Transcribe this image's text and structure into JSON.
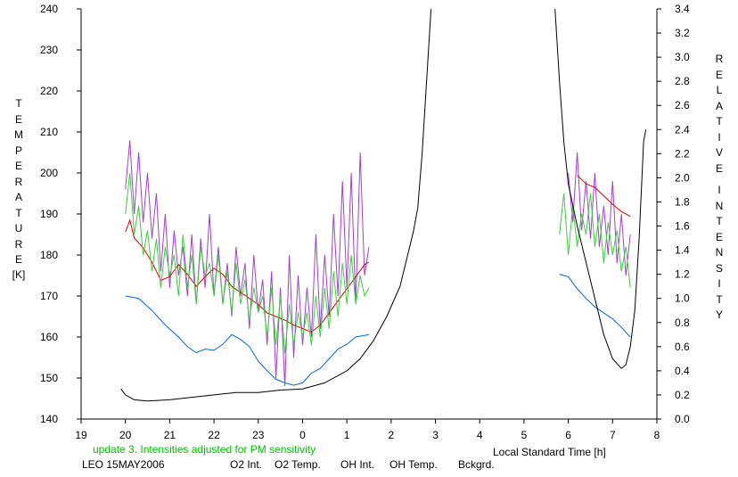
{
  "chart_data": {
    "type": "line",
    "left_axis": {
      "label": "TEMPERATURE [K]",
      "label_letters": "TEMPERATURE",
      "unit": "[K]",
      "ylim": [
        140,
        240
      ],
      "ticks": [
        140,
        150,
        160,
        170,
        180,
        190,
        200,
        210,
        220,
        230,
        240
      ]
    },
    "right_axis": {
      "label": "RELATIVE INTENSITY",
      "word1": "RELATIVE",
      "word2": "INTENSITY",
      "ylim": [
        0.0,
        3.4
      ],
      "ticks": [
        "0.0",
        "0.2",
        "0.4",
        "0.6",
        "0.8",
        "1.0",
        "1.2",
        "1.4",
        "1.6",
        "1.8",
        "2.0",
        "2.2",
        "2.4",
        "2.6",
        "2.8",
        "3.0",
        "3.2",
        "3.4"
      ]
    },
    "x_axis": {
      "label": "Local Standard Time [h]",
      "ticks": [
        "19",
        "20",
        "21",
        "22",
        "23",
        "0",
        "1",
        "2",
        "3",
        "4",
        "5",
        "6",
        "7",
        "8"
      ]
    },
    "note": "update 3. Intensities adjusted for PM sensitivity",
    "station": "LEO 15MAY2006",
    "series": [
      {
        "name": "O2 Int.",
        "color": "#0066dd",
        "axis": "right",
        "points": [
          [
            20.0,
            1.02
          ],
          [
            20.3,
            1.0
          ],
          [
            20.6,
            0.9
          ],
          [
            20.9,
            0.78
          ],
          [
            21.2,
            0.68
          ],
          [
            21.4,
            0.6
          ],
          [
            21.6,
            0.55
          ],
          [
            21.8,
            0.58
          ],
          [
            22.0,
            0.57
          ],
          [
            22.2,
            0.62
          ],
          [
            22.4,
            0.7
          ],
          [
            22.6,
            0.66
          ],
          [
            22.8,
            0.6
          ],
          [
            23.0,
            0.48
          ],
          [
            23.2,
            0.4
          ],
          [
            23.4,
            0.33
          ],
          [
            23.6,
            0.3
          ],
          [
            23.8,
            0.28
          ],
          [
            24.0,
            0.3
          ],
          [
            24.2,
            0.38
          ],
          [
            24.4,
            0.42
          ],
          [
            24.6,
            0.5
          ],
          [
            24.8,
            0.58
          ],
          [
            25.0,
            0.62
          ],
          [
            25.2,
            0.68
          ],
          [
            25.5,
            0.7
          ],
          [
            29.8,
            1.2
          ],
          [
            30.0,
            1.18
          ],
          [
            30.2,
            1.08
          ],
          [
            30.4,
            1.0
          ],
          [
            30.6,
            0.93
          ],
          [
            30.8,
            0.88
          ],
          [
            31.0,
            0.83
          ],
          [
            31.2,
            0.76
          ],
          [
            31.4,
            0.68
          ]
        ]
      },
      {
        "name": "O2 Temp.",
        "color": "#a040d0",
        "axis": "left",
        "points": [
          [
            20.0,
            196
          ],
          [
            20.1,
            208
          ],
          [
            20.2,
            190
          ],
          [
            20.3,
            205
          ],
          [
            20.4,
            188
          ],
          [
            20.5,
            200
          ],
          [
            20.6,
            184
          ],
          [
            20.7,
            195
          ],
          [
            20.8,
            176
          ],
          [
            20.9,
            190
          ],
          [
            21.0,
            172
          ],
          [
            21.1,
            186
          ],
          [
            21.2,
            175
          ],
          [
            21.3,
            182
          ],
          [
            21.4,
            170
          ],
          [
            21.5,
            185
          ],
          [
            21.6,
            168
          ],
          [
            21.7,
            184
          ],
          [
            21.8,
            172
          ],
          [
            21.9,
            190
          ],
          [
            22.0,
            170
          ],
          [
            22.1,
            182
          ],
          [
            22.2,
            168
          ],
          [
            22.3,
            178
          ],
          [
            22.4,
            165
          ],
          [
            22.5,
            182
          ],
          [
            22.6,
            170
          ],
          [
            22.7,
            178
          ],
          [
            22.8,
            162
          ],
          [
            22.9,
            180
          ],
          [
            23.0,
            166
          ],
          [
            23.1,
            174
          ],
          [
            23.2,
            158
          ],
          [
            23.3,
            176
          ],
          [
            23.4,
            150
          ],
          [
            23.5,
            172
          ],
          [
            23.6,
            148
          ],
          [
            23.7,
            180
          ],
          [
            23.8,
            155
          ],
          [
            23.9,
            175
          ],
          [
            24.0,
            158
          ],
          [
            24.1,
            172
          ],
          [
            24.2,
            160
          ],
          [
            24.3,
            185
          ],
          [
            24.4,
            162
          ],
          [
            24.5,
            180
          ],
          [
            24.6,
            165
          ],
          [
            24.7,
            190
          ],
          [
            24.8,
            170
          ],
          [
            24.9,
            198
          ],
          [
            25.0,
            172
          ],
          [
            25.1,
            200
          ],
          [
            25.2,
            168
          ],
          [
            25.3,
            205
          ],
          [
            25.4,
            175
          ],
          [
            25.5,
            182
          ],
          [
            30.0,
            200
          ],
          [
            30.1,
            188
          ],
          [
            30.2,
            205
          ],
          [
            30.3,
            186
          ],
          [
            30.4,
            198
          ],
          [
            30.5,
            184
          ],
          [
            30.6,
            200
          ],
          [
            30.7,
            182
          ],
          [
            30.8,
            192
          ],
          [
            30.9,
            180
          ],
          [
            31.0,
            198
          ],
          [
            31.1,
            178
          ],
          [
            31.2,
            190
          ],
          [
            31.3,
            175
          ],
          [
            31.4,
            185
          ]
        ]
      },
      {
        "name": "OH Int.",
        "color": "#e00000",
        "axis": "right",
        "points": [
          [
            20.0,
            1.55
          ],
          [
            20.1,
            1.65
          ],
          [
            20.2,
            1.5
          ],
          [
            20.4,
            1.42
          ],
          [
            20.6,
            1.3
          ],
          [
            20.8,
            1.15
          ],
          [
            21.0,
            1.18
          ],
          [
            21.2,
            1.28
          ],
          [
            21.4,
            1.2
          ],
          [
            21.6,
            1.1
          ],
          [
            21.8,
            1.18
          ],
          [
            22.0,
            1.25
          ],
          [
            22.2,
            1.2
          ],
          [
            22.4,
            1.1
          ],
          [
            22.6,
            1.05
          ],
          [
            22.8,
            1.0
          ],
          [
            23.0,
            0.95
          ],
          [
            23.2,
            0.88
          ],
          [
            23.4,
            0.85
          ],
          [
            23.6,
            0.82
          ],
          [
            23.8,
            0.78
          ],
          [
            24.0,
            0.75
          ],
          [
            24.2,
            0.72
          ],
          [
            24.4,
            0.78
          ],
          [
            24.6,
            0.88
          ],
          [
            24.8,
            0.98
          ],
          [
            25.0,
            1.08
          ],
          [
            25.2,
            1.18
          ],
          [
            25.4,
            1.28
          ],
          [
            25.5,
            1.3
          ],
          [
            30.2,
            2.02
          ],
          [
            30.4,
            1.95
          ],
          [
            30.6,
            1.92
          ],
          [
            30.8,
            1.85
          ],
          [
            31.0,
            1.78
          ],
          [
            31.2,
            1.72
          ],
          [
            31.4,
            1.68
          ]
        ]
      },
      {
        "name": "OH Temp.",
        "color": "#40cc40",
        "axis": "left",
        "points": [
          [
            20.0,
            190
          ],
          [
            20.1,
            200
          ],
          [
            20.2,
            185
          ],
          [
            20.3,
            192
          ],
          [
            20.4,
            180
          ],
          [
            20.5,
            186
          ],
          [
            20.6,
            176
          ],
          [
            20.7,
            184
          ],
          [
            20.8,
            172
          ],
          [
            20.9,
            182
          ],
          [
            21.0,
            175
          ],
          [
            21.1,
            180
          ],
          [
            21.2,
            170
          ],
          [
            21.3,
            185
          ],
          [
            21.4,
            172
          ],
          [
            21.5,
            180
          ],
          [
            21.6,
            168
          ],
          [
            21.7,
            182
          ],
          [
            21.8,
            175
          ],
          [
            21.9,
            178
          ],
          [
            22.0,
            170
          ],
          [
            22.1,
            180
          ],
          [
            22.2,
            168
          ],
          [
            22.3,
            176
          ],
          [
            22.4,
            166
          ],
          [
            22.5,
            178
          ],
          [
            22.6,
            168
          ],
          [
            22.7,
            174
          ],
          [
            22.8,
            164
          ],
          [
            22.9,
            172
          ],
          [
            23.0,
            166
          ],
          [
            23.1,
            170
          ],
          [
            23.2,
            160
          ],
          [
            23.3,
            172
          ],
          [
            23.4,
            158
          ],
          [
            23.5,
            170
          ],
          [
            23.6,
            156
          ],
          [
            23.7,
            168
          ],
          [
            23.8,
            158
          ],
          [
            23.9,
            166
          ],
          [
            24.0,
            160
          ],
          [
            24.1,
            166
          ],
          [
            24.2,
            158
          ],
          [
            24.3,
            170
          ],
          [
            24.4,
            160
          ],
          [
            24.5,
            172
          ],
          [
            24.6,
            162
          ],
          [
            24.7,
            176
          ],
          [
            24.8,
            165
          ],
          [
            24.9,
            178
          ],
          [
            25.0,
            168
          ],
          [
            25.1,
            180
          ],
          [
            25.2,
            168
          ],
          [
            25.3,
            175
          ],
          [
            25.4,
            170
          ],
          [
            25.5,
            172
          ],
          [
            29.8,
            185
          ],
          [
            29.9,
            195
          ],
          [
            30.0,
            180
          ],
          [
            30.1,
            192
          ],
          [
            30.2,
            182
          ],
          [
            30.3,
            190
          ],
          [
            30.4,
            185
          ],
          [
            30.5,
            195
          ],
          [
            30.6,
            182
          ],
          [
            30.7,
            190
          ],
          [
            30.8,
            178
          ],
          [
            30.9,
            188
          ],
          [
            31.0,
            180
          ],
          [
            31.1,
            186
          ],
          [
            31.2,
            176
          ],
          [
            31.3,
            182
          ],
          [
            31.4,
            172
          ]
        ]
      },
      {
        "name": "Bckgrd.",
        "color": "#000000",
        "axis": "right",
        "points": [
          [
            19.9,
            0.25
          ],
          [
            20.0,
            0.2
          ],
          [
            20.2,
            0.16
          ],
          [
            20.5,
            0.15
          ],
          [
            21.0,
            0.16
          ],
          [
            21.5,
            0.18
          ],
          [
            22.0,
            0.2
          ],
          [
            22.5,
            0.22
          ],
          [
            23.0,
            0.22
          ],
          [
            23.5,
            0.24
          ],
          [
            24.0,
            0.25
          ],
          [
            24.5,
            0.3
          ],
          [
            25.0,
            0.4
          ],
          [
            25.3,
            0.5
          ],
          [
            25.6,
            0.65
          ],
          [
            25.9,
            0.85
          ],
          [
            26.2,
            1.1
          ],
          [
            26.4,
            1.4
          ],
          [
            26.5,
            1.55
          ],
          [
            26.6,
            1.75
          ],
          [
            26.7,
            2.2
          ],
          [
            26.8,
            2.8
          ],
          [
            26.9,
            3.4
          ],
          [
            29.7,
            3.4
          ],
          [
            29.8,
            2.8
          ],
          [
            29.9,
            2.3
          ],
          [
            30.0,
            1.95
          ],
          [
            30.2,
            1.6
          ],
          [
            30.4,
            1.3
          ],
          [
            30.6,
            1.0
          ],
          [
            30.8,
            0.7
          ],
          [
            31.0,
            0.5
          ],
          [
            31.2,
            0.42
          ],
          [
            31.3,
            0.45
          ],
          [
            31.4,
            0.6
          ],
          [
            31.5,
            0.9
          ],
          [
            31.6,
            1.5
          ],
          [
            31.7,
            2.3
          ],
          [
            31.75,
            2.4
          ]
        ]
      }
    ]
  }
}
